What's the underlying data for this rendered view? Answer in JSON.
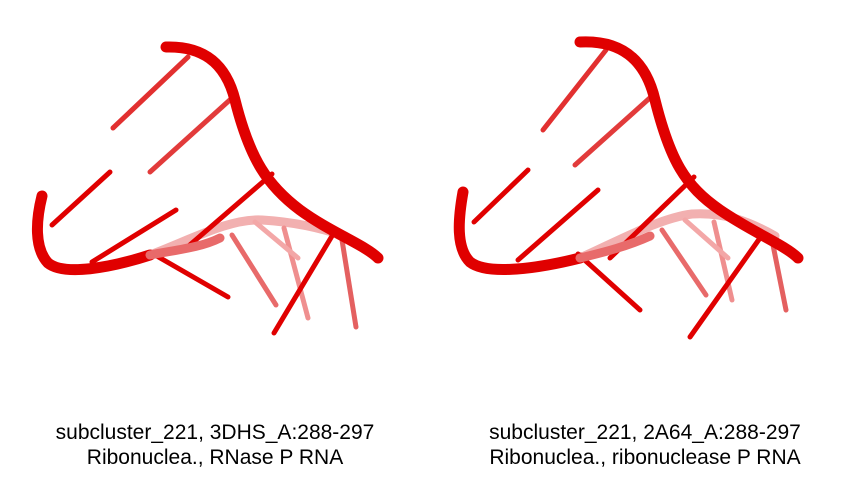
{
  "colors": {
    "rna_red": "#e00000",
    "rna_light": "#ef6f6f",
    "background": "#ffffff"
  },
  "panels": [
    {
      "id": "3DHS",
      "line1": "subcluster_221, 3DHS_A:288-297",
      "line2": "Ribonuclea., RNase P RNA"
    },
    {
      "id": "2A64",
      "line1": "subcluster_221, 2A64_A:288-297",
      "line2": "Ribonuclea., ribonuclease P RNA"
    }
  ]
}
